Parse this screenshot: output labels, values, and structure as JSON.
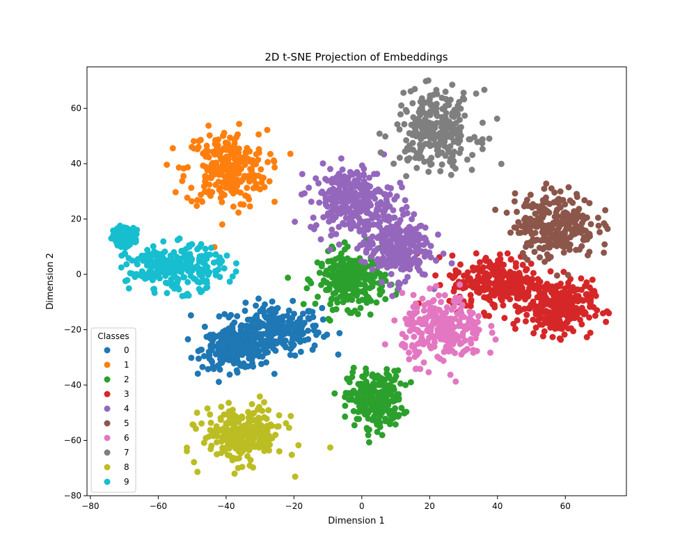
{
  "chart_data": {
    "type": "scatter",
    "title": "2D t-SNE Projection of Embeddings",
    "xlabel": "Dimension 1",
    "ylabel": "Dimension 2",
    "xlim": [
      -81,
      78
    ],
    "ylim": [
      -80,
      75
    ],
    "xticks": [
      -80,
      -60,
      -40,
      -20,
      0,
      20,
      40,
      60
    ],
    "yticks": [
      -80,
      -60,
      -40,
      -20,
      0,
      20,
      40,
      60
    ],
    "grid": false,
    "legend": {
      "title": "Classes",
      "position": "lower-left",
      "entries": [
        "0",
        "1",
        "2",
        "3",
        "4",
        "5",
        "6",
        "7",
        "8",
        "9"
      ]
    },
    "colors": [
      "#1f77b4",
      "#ff7f0e",
      "#2ca02c",
      "#d62728",
      "#9467bd",
      "#8c564b",
      "#e377c2",
      "#7f7f7f",
      "#bcbd22",
      "#17becf"
    ],
    "series": [
      {
        "name": "0",
        "clusters": [
          {
            "center": [
              -26,
              -20
            ],
            "spread": [
              7,
              4.5
            ]
          },
          {
            "center": [
              -37,
              -27
            ],
            "spread": [
              5,
              3.5
            ]
          }
        ]
      },
      {
        "name": "1",
        "clusters": [
          {
            "center": [
              -40,
              38
            ],
            "spread": [
              6,
              7
            ]
          }
        ]
      },
      {
        "name": "2",
        "clusters": [
          {
            "center": [
              4,
              -45
            ],
            "spread": [
              4,
              5
            ]
          },
          {
            "center": [
              -3,
              -2
            ],
            "spread": [
              5,
              5
            ]
          }
        ]
      },
      {
        "name": "3",
        "clusters": [
          {
            "center": [
              58,
              -12
            ],
            "spread": [
              5,
              5
            ]
          },
          {
            "center": [
              40,
              -3
            ],
            "spread": [
              7,
              5
            ]
          }
        ]
      },
      {
        "name": "4",
        "clusters": [
          {
            "center": [
              -3,
              27
            ],
            "spread": [
              6,
              6
            ]
          },
          {
            "center": [
              10,
              10
            ],
            "spread": [
              5,
              6
            ]
          }
        ]
      },
      {
        "name": "5",
        "clusters": [
          {
            "center": [
              57,
              18
            ],
            "spread": [
              6,
              6
            ]
          }
        ]
      },
      {
        "name": "6",
        "clusters": [
          {
            "center": [
              24,
              -20
            ],
            "spread": [
              6,
              6
            ]
          }
        ]
      },
      {
        "name": "7",
        "clusters": [
          {
            "center": [
              22,
              52
            ],
            "spread": [
              6,
              7
            ]
          }
        ]
      },
      {
        "name": "8",
        "clusters": [
          {
            "center": [
              -35,
              -58
            ],
            "spread": [
              6,
              5
            ]
          }
        ]
      },
      {
        "name": "9",
        "clusters": [
          {
            "center": [
              -55,
              2
            ],
            "spread": [
              7,
              4
            ]
          },
          {
            "center": [
              -70,
              14
            ],
            "spread": [
              1.5,
              1.5
            ]
          }
        ]
      }
    ]
  }
}
